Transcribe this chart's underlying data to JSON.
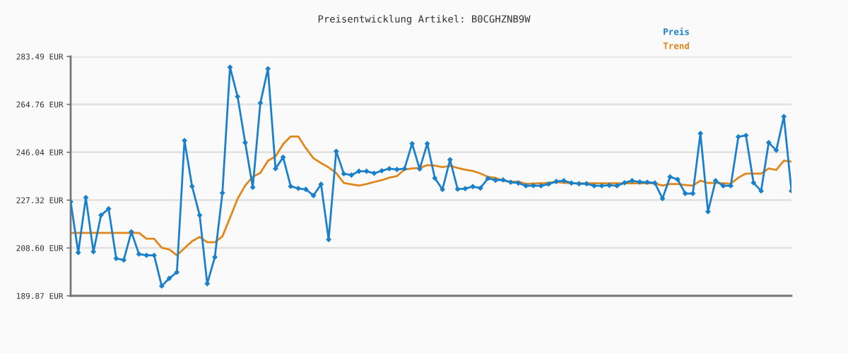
{
  "chart_data": {
    "type": "line",
    "title": "Preisentwicklung Artikel: B0CGHZNB9W",
    "categories": [
      null,
      null,
      null,
      null,
      null,
      null,
      null,
      null,
      null,
      null,
      null,
      null,
      null,
      null,
      null,
      null,
      null,
      null,
      null,
      null,
      null,
      null,
      null,
      null,
      null,
      null,
      null,
      null,
      null,
      null,
      null,
      null,
      null,
      null,
      null,
      null,
      null,
      null,
      null,
      null,
      null,
      null,
      null,
      null,
      null,
      null,
      null,
      null,
      null,
      null,
      null,
      null,
      null,
      null,
      null,
      null,
      null,
      null,
      null,
      null,
      null,
      null,
      null,
      null,
      null,
      null,
      null,
      null,
      null,
      null,
      null,
      null,
      null,
      null,
      null,
      null,
      null,
      null,
      null,
      null,
      null,
      null,
      null,
      null,
      null,
      null,
      null,
      null,
      null,
      null,
      null,
      null,
      null,
      null,
      null,
      null
    ],
    "series": [
      {
        "name": "Preis",
        "color": "#1a80cc",
        "marker": "diamond",
        "values": [
          226.7,
          206.8,
          228.3,
          207.1,
          221.4,
          223.9,
          204.5,
          203.9,
          214.9,
          206.2,
          205.7,
          205.7,
          193.7,
          196.7,
          199.1,
          250.6,
          232.7,
          221.4,
          194.6,
          205.0,
          230.1,
          279.3,
          267.8,
          249.8,
          232.3,
          265.3,
          278.7,
          239.6,
          244.1,
          232.7,
          231.9,
          231.5,
          229.1,
          233.5,
          211.9,
          246.4,
          237.6,
          237.1,
          238.6,
          238.6,
          237.8,
          238.8,
          239.6,
          239.3,
          239.6,
          249.4,
          239.5,
          249.4,
          235.9,
          231.5,
          243.1,
          231.6,
          231.8,
          232.6,
          232.0,
          235.8,
          235.1,
          235.2,
          234.3,
          234.0,
          232.9,
          233.0,
          232.9,
          233.6,
          234.6,
          234.9,
          234.0,
          233.7,
          233.7,
          232.9,
          232.9,
          233.1,
          232.9,
          234.1,
          234.9,
          234.4,
          234.3,
          234.0,
          227.9,
          236.4,
          235.4,
          229.9,
          229.9,
          253.4,
          222.8,
          234.9,
          232.9,
          232.9,
          252.1,
          252.6,
          234.1,
          230.9,
          249.8,
          246.8,
          260.0,
          230.9
        ]
      },
      {
        "name": "Trend",
        "color": "#e0861a",
        "marker": "none",
        "values": [
          214.5,
          214.5,
          214.5,
          214.5,
          214.5,
          214.5,
          214.5,
          214.5,
          214.5,
          214.5,
          212.2,
          212.2,
          208.7,
          208.0,
          205.7,
          208.5,
          211.2,
          212.9,
          210.8,
          210.8,
          213.1,
          220.4,
          227.8,
          233.0,
          236.5,
          237.9,
          242.7,
          244.4,
          249.2,
          252.2,
          252.2,
          247.6,
          243.7,
          241.8,
          240.1,
          237.9,
          234.0,
          233.5,
          233.0,
          233.6,
          234.4,
          235.1,
          236.1,
          236.7,
          239.3,
          239.7,
          239.9,
          241.0,
          240.8,
          240.2,
          240.7,
          239.9,
          239.2,
          238.7,
          237.7,
          236.4,
          236.0,
          234.9,
          234.4,
          234.6,
          233.6,
          233.8,
          233.9,
          234.1,
          234.4,
          234.1,
          233.9,
          233.9,
          233.9,
          233.9,
          233.9,
          233.9,
          233.9,
          233.9,
          233.9,
          233.9,
          233.9,
          233.9,
          233.0,
          233.6,
          233.6,
          233.2,
          233.0,
          234.9,
          234.0,
          234.0,
          233.9,
          233.7,
          236.1,
          237.7,
          237.7,
          237.7,
          239.7,
          239.1,
          242.7,
          242.4
        ]
      }
    ],
    "ylim": [
      189.87,
      283.49
    ],
    "yticks": [
      {
        "value": 189.87,
        "label": "189.87 EUR"
      },
      {
        "value": 208.6,
        "label": "208.60 EUR"
      },
      {
        "value": 227.32,
        "label": "227.32 EUR"
      },
      {
        "value": 246.04,
        "label": "246.04 EUR"
      },
      {
        "value": 264.76,
        "label": "264.76 EUR"
      },
      {
        "value": 283.49,
        "label": "283.49 EUR"
      }
    ],
    "grid": "y",
    "legend": "top right",
    "line_style": "solid",
    "tick_labels": "y"
  }
}
